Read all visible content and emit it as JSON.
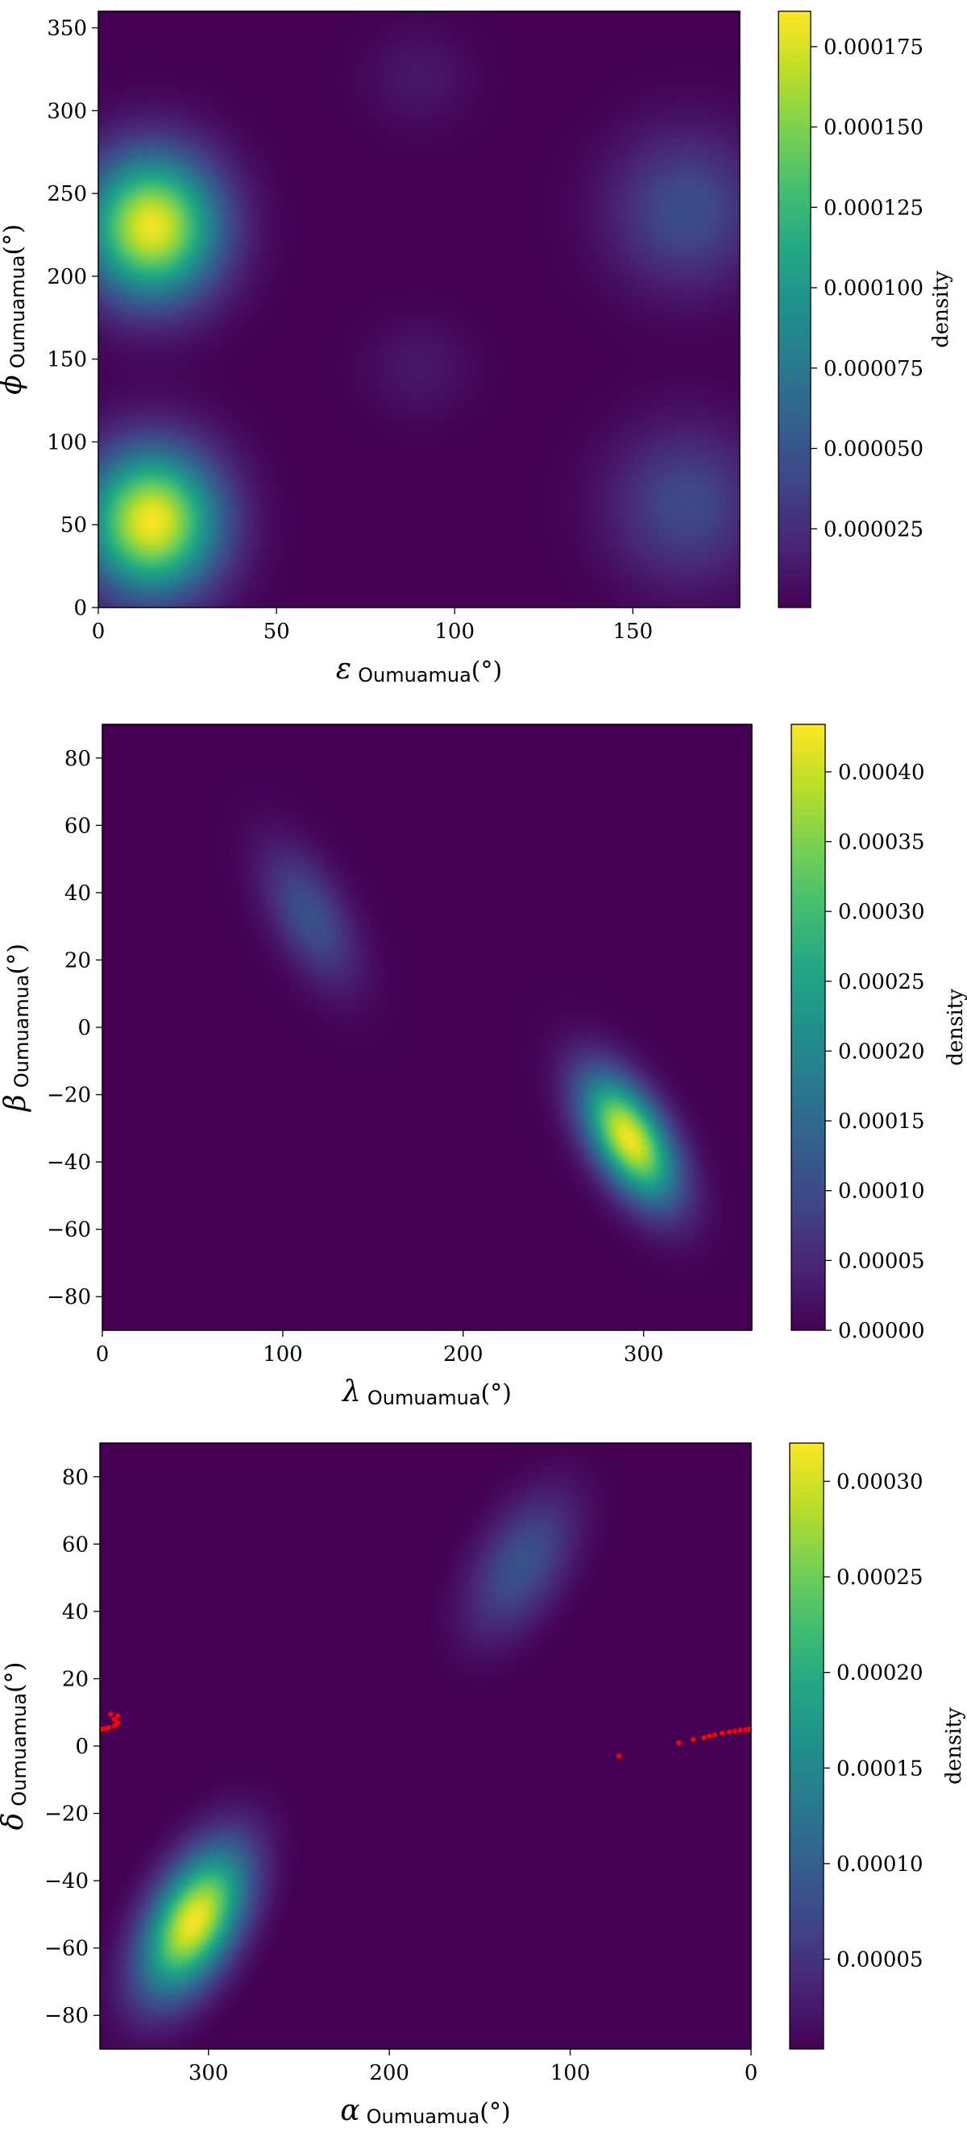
{
  "chart_data": [
    {
      "type": "heatmap",
      "title": "",
      "xlabel": {
        "symbol": "ε",
        "subscript": "Oumuamua",
        "unit": "(°)"
      },
      "ylabel": {
        "symbol": "ϕ",
        "subscript": "Oumuamua",
        "unit": "(°)"
      },
      "xlim": [
        0,
        180
      ],
      "ylim": [
        0,
        360
      ],
      "x_ticks": [
        0,
        50,
        100,
        150
      ],
      "y_ticks": [
        0,
        50,
        100,
        150,
        200,
        250,
        300,
        350
      ],
      "colormap": "viridis",
      "colorbar": {
        "label": "density",
        "range": [
          5e-07,
          0.000186
        ],
        "ticks": [
          "0.000025",
          "0.000050",
          "0.000075",
          "0.000100",
          "0.000125",
          "0.000150",
          "0.000175"
        ],
        "tick_values": [
          2.5e-05,
          5e-05,
          7.5e-05,
          0.0001,
          0.000125,
          0.00015,
          0.000175
        ]
      },
      "density_peaks": [
        {
          "x": 15,
          "y": 230,
          "density": 0.000182,
          "sx": 13,
          "sy": 30
        },
        {
          "x": 15,
          "y": 52,
          "density": 0.000184,
          "sx": 13,
          "sy": 30
        },
        {
          "x": 165,
          "y": 240,
          "density": 4.5e-05,
          "sx": 15,
          "sy": 33
        },
        {
          "x": 165,
          "y": 62,
          "density": 4.2e-05,
          "sx": 15,
          "sy": 33
        },
        {
          "x": 90,
          "y": 320,
          "density": 1.2e-05,
          "sx": 11,
          "sy": 22
        },
        {
          "x": 90,
          "y": 145,
          "density": 1.2e-05,
          "sx": 11,
          "sy": 22
        }
      ],
      "points": []
    },
    {
      "type": "heatmap",
      "title": "",
      "xlabel": {
        "symbol": "λ",
        "subscript": "Oumuamua",
        "unit": "(°)"
      },
      "ylabel": {
        "symbol": "β",
        "subscript": "Oumuamua",
        "unit": "(°)"
      },
      "xlim": [
        0,
        360
      ],
      "ylim": [
        -90,
        90
      ],
      "x_ticks": [
        0,
        100,
        200,
        300
      ],
      "y_ticks": [
        -80,
        -60,
        -40,
        -20,
        0,
        20,
        40,
        60,
        80
      ],
      "colormap": "viridis",
      "colorbar": {
        "label": "density",
        "range": [
          0,
          0.000434
        ],
        "ticks": [
          "0.00000",
          "0.00005",
          "0.00010",
          "0.00015",
          "0.00020",
          "0.00025",
          "0.00030",
          "0.00035",
          "0.00040"
        ],
        "tick_values": [
          0,
          5e-05,
          0.0001,
          0.00015,
          0.0002,
          0.00025,
          0.0003,
          0.00035,
          0.0004
        ]
      },
      "density_peaks": [
        {
          "x": 292,
          "y": -33,
          "density": 0.000425,
          "sx": 18,
          "sy": 13,
          "rho": -0.55
        },
        {
          "x": 115,
          "y": 33,
          "density": 0.00011,
          "sx": 18,
          "sy": 14,
          "rho": -0.55
        }
      ],
      "points": []
    },
    {
      "type": "heatmap",
      "title": "",
      "xlabel": {
        "symbol": "α",
        "subscript": "Oumuamua",
        "unit": "(°)"
      },
      "ylabel": {
        "symbol": "δ",
        "subscript": "Oumuamua",
        "unit": "(°)"
      },
      "xlim": [
        360,
        0
      ],
      "ylim": [
        -90,
        90
      ],
      "x_ticks": [
        300,
        200,
        100,
        0
      ],
      "y_ticks": [
        -80,
        -60,
        -40,
        -20,
        0,
        20,
        40,
        60,
        80
      ],
      "colormap": "viridis",
      "colorbar": {
        "label": "density",
        "range": [
          3e-06,
          0.00032
        ],
        "ticks": [
          "0.00005",
          "0.00010",
          "0.00015",
          "0.00020",
          "0.00025",
          "0.00030"
        ],
        "tick_values": [
          5e-05,
          0.0001,
          0.00015,
          0.0002,
          0.00025,
          0.0003
        ]
      },
      "density_peaks": [
        {
          "x": 308,
          "y": -52,
          "density": 0.000315,
          "sx": 20,
          "sy": 15,
          "rho": -0.5
        },
        {
          "x": 127,
          "y": 54,
          "density": 8.5e-05,
          "sx": 21,
          "sy": 15,
          "rho": -0.5
        }
      ],
      "points": [
        {
          "x": 359,
          "y": 5
        },
        {
          "x": 357,
          "y": 5.2
        },
        {
          "x": 355,
          "y": 5.5
        },
        {
          "x": 352,
          "y": 6
        },
        {
          "x": 351,
          "y": 6.5
        },
        {
          "x": 350,
          "y": 7
        },
        {
          "x": 352,
          "y": 8
        },
        {
          "x": 350,
          "y": 9
        },
        {
          "x": 354,
          "y": 9.5
        },
        {
          "x": 73,
          "y": -3
        },
        {
          "x": 40,
          "y": 1
        },
        {
          "x": 32,
          "y": 2
        },
        {
          "x": 26,
          "y": 2.5
        },
        {
          "x": 23,
          "y": 3
        },
        {
          "x": 20,
          "y": 3.3
        },
        {
          "x": 16,
          "y": 3.8
        },
        {
          "x": 12,
          "y": 4.2
        },
        {
          "x": 9,
          "y": 4.4
        },
        {
          "x": 6,
          "y": 4.7
        },
        {
          "x": 3,
          "y": 4.9
        },
        {
          "x": 1,
          "y": 5
        }
      ]
    }
  ]
}
